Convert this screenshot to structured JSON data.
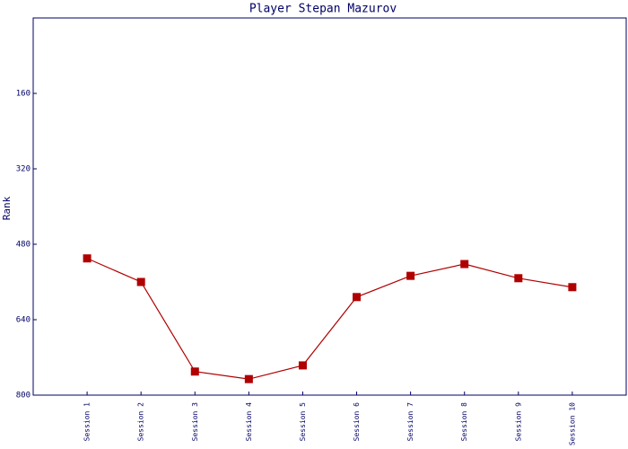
{
  "chart_data": {
    "type": "line",
    "title": "Player Stepan Mazurov",
    "y_label": "Rank",
    "categories": [
      "Session 1",
      "Session 2",
      "Session 3",
      "Session 4",
      "Session 5",
      "Session 6",
      "Session 7",
      "Session 8",
      "Session 9",
      "Session 10"
    ],
    "series": [
      {
        "name": "Rank",
        "color": "#b00000",
        "values": [
          510,
          560,
          750,
          766,
          737,
          592,
          547,
          522,
          552,
          571
        ]
      }
    ],
    "ylim": [
      0,
      800
    ],
    "y_inverted": true,
    "yticks": [
      160,
      320,
      480,
      640,
      800
    ]
  }
}
